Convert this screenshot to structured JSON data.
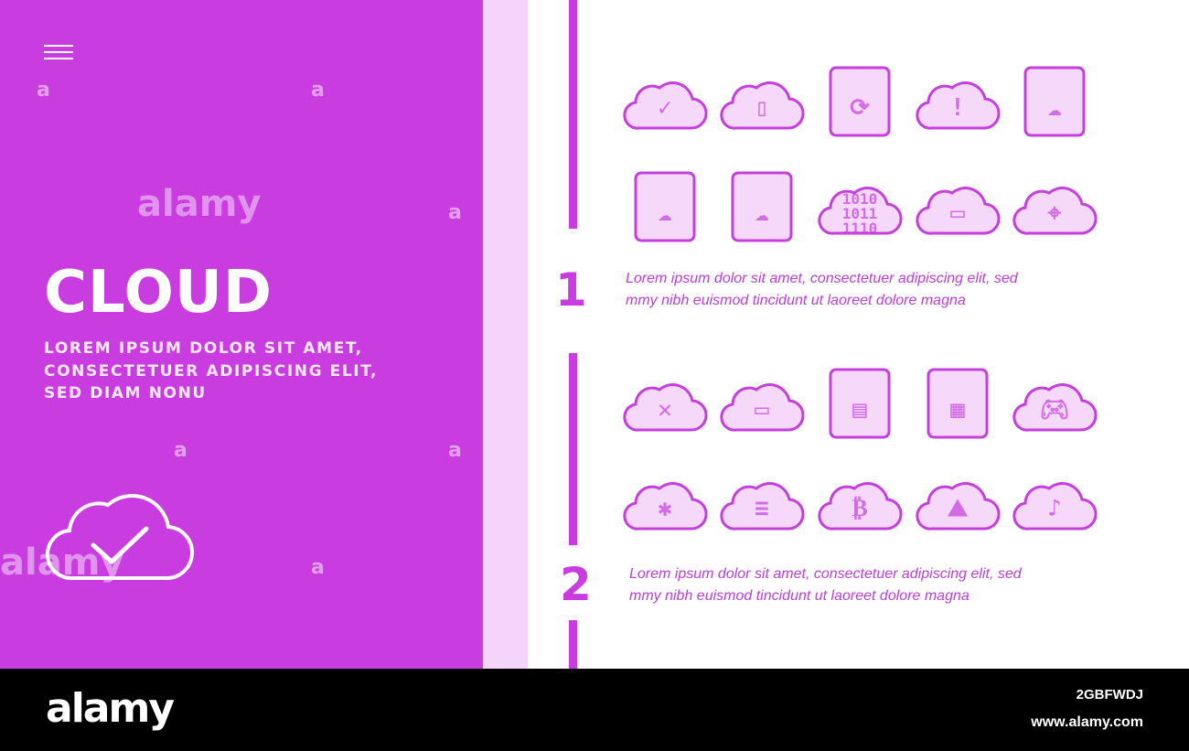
{
  "hero": {
    "title": "CLOUD",
    "subtitle": [
      "LOREM IPSUM DOLOR SIT AMET,",
      "CONSECTETUER ADIPISCING ELIT,",
      "SED DIAM NONU"
    ],
    "menu_icon": "hamburger-icon",
    "feature_icon": "cloud-check-icon"
  },
  "sections": [
    {
      "number": "1",
      "text": [
        "Lorem ipsum dolor sit amet, consectetuer adipiscing elit, sed",
        "mmy nibh euismod tincidunt ut laoreet dolore magna"
      ]
    },
    {
      "number": "2",
      "text": [
        "Lorem ipsum dolor sit amet, consectetuer adipiscing elit, sed",
        "mmy nibh euismod tincidunt ut laoreet dolore magna"
      ]
    }
  ],
  "icons": [
    {
      "name": "cloud-check-icon",
      "glyph": "✓",
      "cloud": true
    },
    {
      "name": "cloud-book-icon",
      "glyph": "▯",
      "cloud": true
    },
    {
      "name": "sync-devices-icon",
      "glyph": "⟳",
      "cloud": false
    },
    {
      "name": "cloud-warning-icon",
      "glyph": "!",
      "cloud": true
    },
    {
      "name": "monitor-cloud-icon",
      "glyph": "☁",
      "cloud": false
    },
    {
      "name": "shield-cloud-icon",
      "glyph": "☁",
      "cloud": false
    },
    {
      "name": "folder-cloud-icon",
      "glyph": "☁",
      "cloud": false
    },
    {
      "name": "cloud-binary-icon",
      "glyph": "1010 1011 1110",
      "cloud": true
    },
    {
      "name": "cloud-password-icon",
      "glyph": "▭",
      "cloud": true
    },
    {
      "name": "cloud-location-icon",
      "glyph": "⌖",
      "cloud": true
    },
    {
      "name": "cloud-error-icon",
      "glyph": "✕",
      "cloud": true
    },
    {
      "name": "cloud-card-icon",
      "glyph": "▭",
      "cloud": true
    },
    {
      "name": "server-rack-icon",
      "glyph": "▤",
      "cloud": false
    },
    {
      "name": "phone-cloud-icon",
      "glyph": "▦",
      "cloud": false
    },
    {
      "name": "cloud-gaming-icon",
      "glyph": "🎮︎",
      "cloud": true
    },
    {
      "name": "cloud-bug-icon",
      "glyph": "✱",
      "cloud": true
    },
    {
      "name": "cloud-chat-icon",
      "glyph": "≡",
      "cloud": true
    },
    {
      "name": "cloud-bitcoin-icon",
      "glyph": "₿",
      "cloud": true
    },
    {
      "name": "cloud-image-icon",
      "glyph": "⛰",
      "cloud": true
    },
    {
      "name": "cloud-music-icon",
      "glyph": "♪",
      "cloud": true
    }
  ],
  "colors": {
    "primary": "#c93ce0",
    "light": "#f4d4f9",
    "icon_fill": "#f5d8fa",
    "icon_stroke": "#c43fdc"
  },
  "watermark": {
    "text": "alamy",
    "letter": "a"
  },
  "footer": {
    "logo": "alamy",
    "image_id": "2GBFWDJ",
    "site": "www.alamy.com"
  }
}
